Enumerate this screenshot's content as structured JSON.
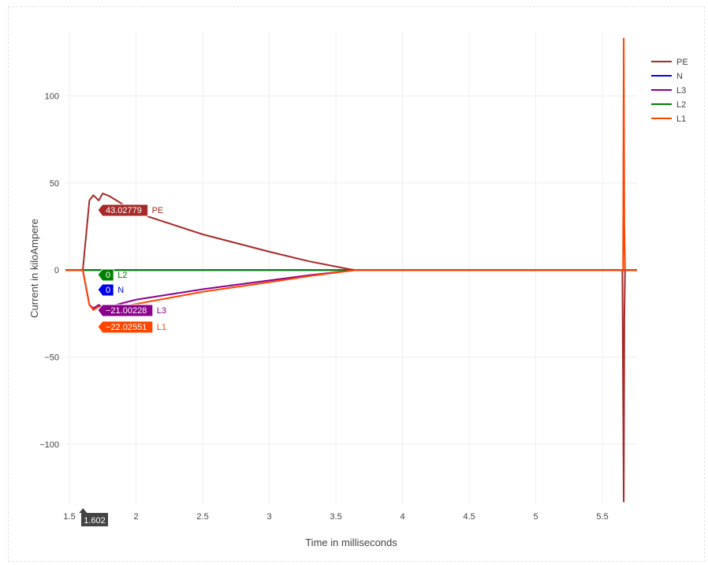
{
  "chart_data": {
    "type": "line",
    "xlabel": "Time in milliseconds",
    "ylabel": "Current in kiloAmpere",
    "xlim": [
      1.47,
      5.76
    ],
    "ylim": [
      -135,
      137
    ],
    "x_ticks": [
      1.5,
      2,
      2.5,
      3,
      3.5,
      4,
      4.5,
      5,
      5.5
    ],
    "x_tick_labels": [
      "1.5",
      "2",
      "2.5",
      "3",
      "3.5",
      "4",
      "4.5",
      "5",
      "5.5"
    ],
    "y_ticks": [
      -100,
      -50,
      0,
      50,
      100
    ],
    "y_tick_labels": [
      "−100",
      "−50",
      "0",
      "50",
      "100"
    ],
    "grid": true,
    "legend_position": "top-right",
    "series": [
      {
        "name": "PE",
        "color": "#a52a2a",
        "x": [
          1.47,
          1.6,
          1.65,
          1.68,
          1.72,
          1.75,
          1.8,
          2.0,
          2.5,
          3.0,
          3.3,
          3.6,
          3.65,
          5.65,
          5.66,
          5.665,
          5.67,
          5.68,
          5.76
        ],
        "y": [
          0,
          0,
          40,
          43,
          40,
          44,
          42.5,
          33,
          20.5,
          10.5,
          5,
          0.5,
          0,
          0,
          -133,
          -28,
          0,
          0,
          0
        ]
      },
      {
        "name": "N",
        "color": "#0000ee",
        "x": [
          1.47,
          5.76
        ],
        "y": [
          0,
          0
        ]
      },
      {
        "name": "L3",
        "color": "#8b008b",
        "x": [
          1.47,
          1.6,
          1.65,
          1.68,
          1.72,
          1.75,
          1.8,
          2.0,
          2.5,
          3.0,
          3.3,
          3.6,
          3.65,
          5.76
        ],
        "y": [
          0,
          0,
          -20,
          -22,
          -20,
          -21.5,
          -21,
          -17,
          -11,
          -6,
          -3,
          -0.5,
          0,
          0
        ]
      },
      {
        "name": "L2",
        "color": "#008000",
        "x": [
          1.47,
          5.76
        ],
        "y": [
          0,
          0
        ]
      },
      {
        "name": "L1",
        "color": "#ff4500",
        "x": [
          1.47,
          1.6,
          1.65,
          1.68,
          1.72,
          1.75,
          1.8,
          2.0,
          2.5,
          3.0,
          3.3,
          3.6,
          3.65,
          5.655,
          5.66,
          5.665,
          5.67,
          5.76
        ],
        "y": [
          0,
          0,
          -20,
          -23,
          -21,
          -22.5,
          -22,
          -19.5,
          -12.5,
          -7,
          -3.5,
          -0.5,
          0,
          0,
          133,
          25,
          0,
          0
        ]
      }
    ],
    "hover": {
      "x_label": "1.602",
      "points": [
        {
          "series": "PE",
          "value": "43.02779",
          "y": 43.02779,
          "color": "#a52a2a"
        },
        {
          "series": "L2",
          "value": "0",
          "y": 0,
          "color": "#008000"
        },
        {
          "series": "N",
          "value": "0",
          "y": 0,
          "color": "#0000ee"
        },
        {
          "series": "L3",
          "value": "−21.00228",
          "y": -21.00228,
          "color": "#8b008b"
        },
        {
          "series": "L1",
          "value": "−22.02551",
          "y": -22.02551,
          "color": "#ff4500"
        }
      ]
    }
  }
}
